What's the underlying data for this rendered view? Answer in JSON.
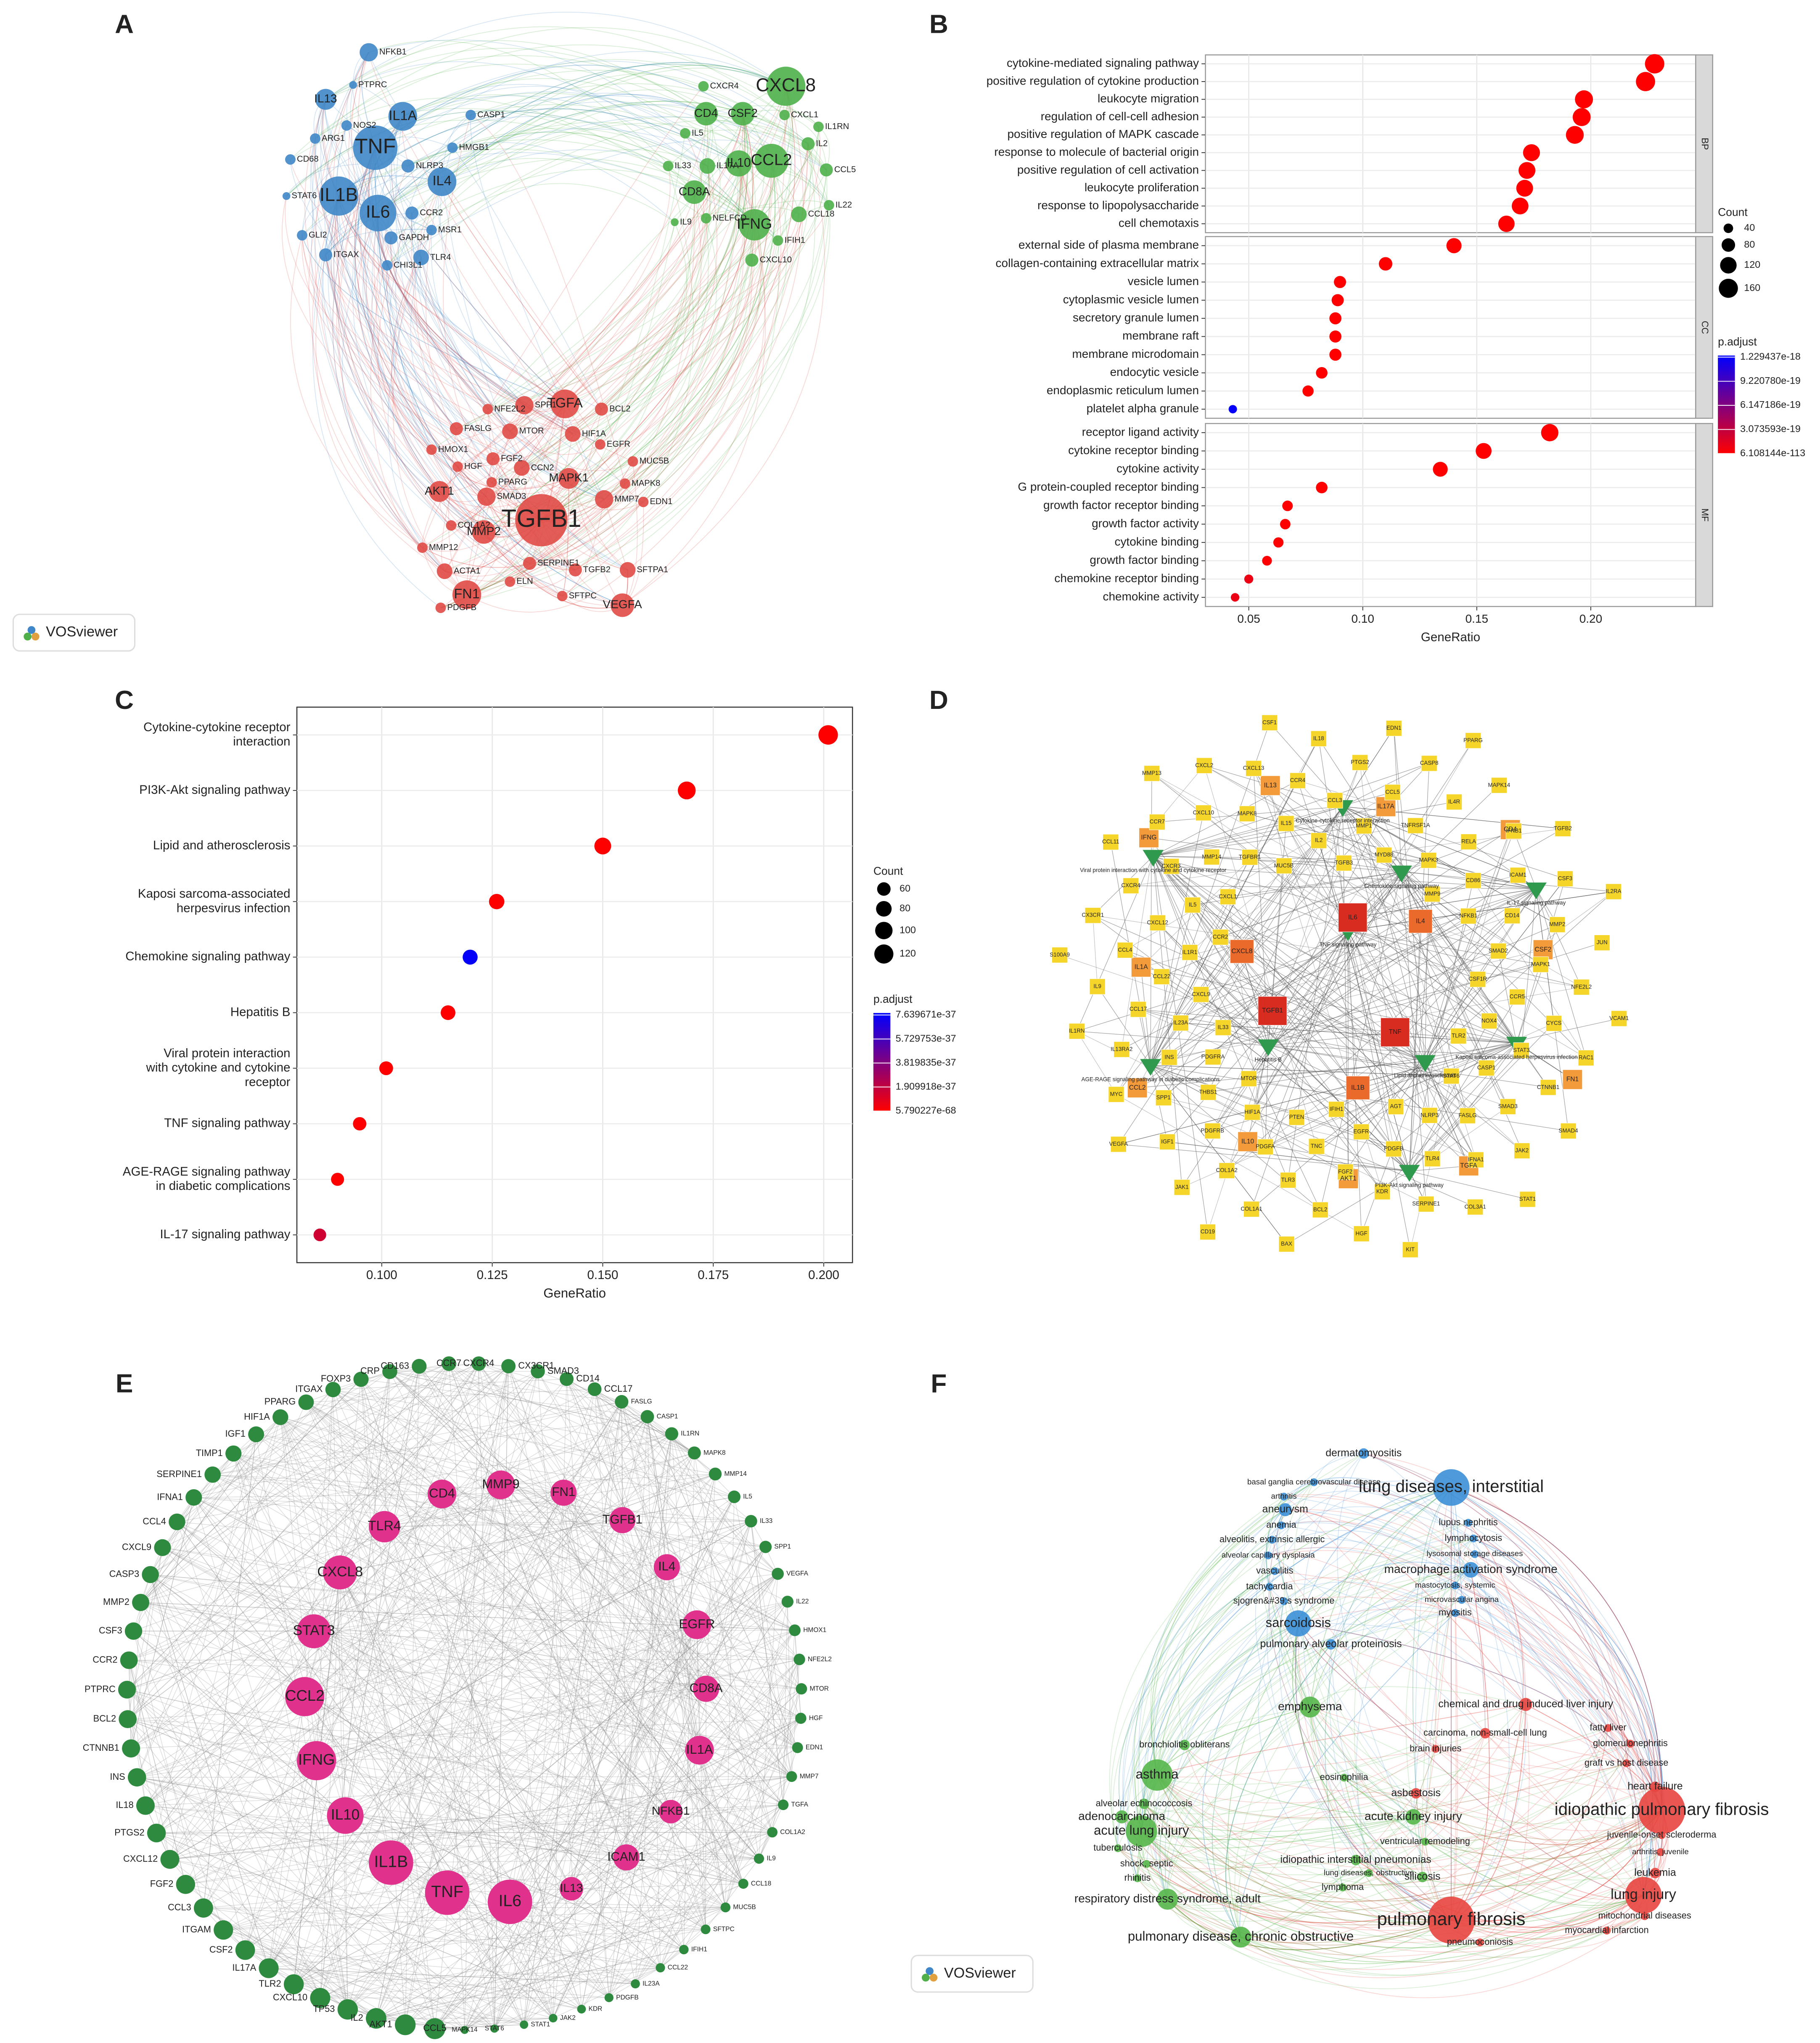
{
  "chart_data": [
    {
      "type": "network",
      "panel": "A",
      "watermark": "VOSviewer",
      "groups": [
        {
          "color": "#3f87c8",
          "shape": "circle",
          "nodes": [
            "TNF",
            "IL1B",
            "IL6",
            "IL1A",
            "IL4",
            "IL13",
            "NFKB1",
            "PTPRC",
            "NOS2",
            "CASP1",
            "HMGB1",
            "ARG1",
            "CD68",
            "NLRP3",
            "CCR2",
            "MSR1",
            "GAPDH",
            "STAT6",
            "GLI2",
            "ITGAX",
            "CHI3L1",
            "TLR4"
          ]
        },
        {
          "color": "#4fb04a",
          "shape": "circle",
          "nodes": [
            "CXCL8",
            "CD4",
            "CSF2",
            "CXCR4",
            "CXCL1",
            "IL1RN",
            "IL5",
            "CCL2",
            "IL10",
            "IL2",
            "IL33",
            "IL17A",
            "CCL5",
            "CD8A",
            "IFNG",
            "NELFCD",
            "CCL18",
            "IL22",
            "IFIH1",
            "CXCL10",
            "IL9"
          ]
        },
        {
          "color": "#e04a45",
          "shape": "circle",
          "nodes": [
            "TGFB1",
            "FN1",
            "VEGFA",
            "TGFA",
            "SPP1",
            "NFE2L2",
            "BCL2",
            "FASLG",
            "MTOR",
            "HIF1A",
            "HMOX1",
            "EGFR",
            "HGF",
            "FGF2",
            "CCN2",
            "MUC5B",
            "PPARG",
            "MAPK1",
            "MAPK8",
            "AKT1",
            "SMAD3",
            "MMP7",
            "EDN1",
            "COL1A2",
            "MMP2",
            "MMP12",
            "SERPINE1",
            "TGFB2",
            "SFTPA1",
            "ACTA1",
            "ELN",
            "SFTPC",
            "PDGFB"
          ]
        }
      ]
    },
    {
      "type": "dot",
      "panel": "B",
      "xlabel": "GeneRatio",
      "xlim": [
        0.031,
        0.246
      ],
      "xticks": [
        0.05,
        {
          "value": 0.1,
          "label": "0.10"
        },
        0.15,
        {
          "value": 0.2,
          "label": "0.20"
        }
      ],
      "grid": true,
      "size_title": "Count",
      "size_ticks": [
        40,
        80,
        120,
        160
      ],
      "color_title": "p.adjust",
      "colors": [
        "#ff0000",
        "#0000ff"
      ],
      "clim": [
        6.108144e-113,
        1.25e-18
      ],
      "color_ticks": [
        {
          "value": 1.229437e-18,
          "label": "1.229437e-18"
        },
        {
          "value": 9.22078e-19,
          "label": "9.220780e-19"
        },
        {
          "value": 6.147186e-19,
          "label": "6.147186e-19"
        },
        {
          "value": 3.073593e-19,
          "label": "3.073593e-19"
        },
        {
          "value": 6.108144e-113,
          "label": "6.108144e-113"
        }
      ],
      "facets": [
        {
          "name": "BP",
          "categories": [
            "cytokine-mediated signaling pathway",
            "positive regulation of cytokine production",
            "leukocyte migration",
            "regulation of cell-cell adhesion",
            "positive regulation of MAPK cascade",
            "response to molecule of bacterial origin",
            "positive regulation of cell activation",
            "leukocyte proliferation",
            "response to lipopolysaccharide",
            "cell chemotaxis"
          ],
          "values": [
            0.228,
            0.224,
            0.197,
            0.196,
            0.193,
            0.174,
            0.172,
            0.171,
            0.169,
            0.163
          ],
          "counts": [
            165,
            162,
            143,
            142,
            140,
            126,
            125,
            124,
            123,
            118
          ],
          "p_adjust": [
            6.108144e-113,
            1e-110,
            1e-95,
            1e-90,
            1e-88,
            1e-75,
            1e-72,
            1e-70,
            1e-70,
            1e-68
          ]
        },
        {
          "name": "CC",
          "categories": [
            "external side of plasma membrane",
            "collagen-containing extracellular matrix",
            "vesicle lumen",
            "cytoplasmic vesicle lumen",
            "secretory granule lumen",
            "membrane raft",
            "membrane microdomain",
            "endocytic vesicle",
            "endoplasmic reticulum lumen",
            "platelet alpha granule"
          ],
          "values": [
            0.14,
            0.11,
            0.09,
            0.089,
            0.088,
            0.088,
            0.088,
            0.082,
            0.076,
            0.043
          ],
          "counts": [
            101,
            80,
            65,
            65,
            64,
            64,
            64,
            59,
            55,
            31
          ],
          "p_adjust": [
            1e-55,
            1e-40,
            1e-30,
            1e-30,
            1e-29,
            1e-28,
            1e-28,
            1e-25,
            1e-22,
            1.229437e-18
          ]
        },
        {
          "name": "MF",
          "categories": [
            "receptor ligand activity",
            "cytokine receptor binding",
            "cytokine activity",
            "G protein-coupled receptor binding",
            "growth factor receptor binding",
            "growth factor activity",
            "cytokine binding",
            "growth factor binding",
            "chemokine receptor binding",
            "chemokine activity"
          ],
          "values": [
            0.182,
            0.153,
            0.134,
            0.082,
            0.067,
            0.066,
            0.063,
            0.058,
            0.05,
            0.044
          ],
          "counts": [
            132,
            111,
            97,
            59,
            49,
            48,
            46,
            42,
            36,
            32
          ],
          "p_adjust": [
            1e-80,
            1e-70,
            1e-60,
            1e-30,
            1e-24,
            1e-23,
            1e-22,
            1e-20,
            1e-19,
            1e-19
          ]
        }
      ]
    },
    {
      "type": "dot",
      "panel": "C",
      "xlabel": "GeneRatio",
      "xlim": [
        0.0808,
        0.2065
      ],
      "xticks": [
        {
          "value": 0.1,
          "label": "0.100"
        },
        0.125,
        {
          "value": 0.15,
          "label": "0.150"
        },
        0.175,
        {
          "value": 0.2,
          "label": "0.200"
        }
      ],
      "grid": true,
      "size_title": "Count",
      "size_ticks": [
        60,
        80,
        100,
        120
      ],
      "color_title": "p.adjust",
      "colors": [
        "#ff0000",
        "#0000ff"
      ],
      "clim": [
        5.790227e-68,
        7.8e-37
      ],
      "color_ticks": [
        {
          "value": 7.639671e-37,
          "label": "7.639671e-37"
        },
        {
          "value": 5.729753e-37,
          "label": "5.729753e-37"
        },
        {
          "value": 3.819835e-37,
          "label": "3.819835e-37"
        },
        {
          "value": 1.909918e-37,
          "label": "1.909918e-37"
        },
        {
          "value": 5.790227e-68,
          "label": "5.790227e-68"
        }
      ],
      "categories": [
        "Cytokine-cytokine receptor\ninteraction",
        "PI3K-Akt signaling pathway",
        "Lipid and atherosclerosis",
        "Kaposi sarcoma-associated\nherpesvirus infection",
        "Chemokine signaling pathway",
        "Hepatitis B",
        "Viral protein interaction\nwith cytokine and cytokine\nreceptor",
        "TNF signaling pathway",
        "AGE-RAGE signaling pathway\nin diabetic complications",
        "IL-17 signaling pathway"
      ],
      "values": [
        0.201,
        0.169,
        0.15,
        0.126,
        0.12,
        0.115,
        0.101,
        0.095,
        0.09,
        0.086
      ],
      "counts": [
        125,
        105,
        93,
        78,
        74,
        71,
        63,
        59,
        56,
        53
      ],
      "p_adjust": [
        5.790227e-68,
        1e-60,
        1e-55,
        1e-45,
        7.639671e-37,
        1e-42,
        1e-40,
        1e-42,
        1e-40,
        1.5e-37
      ]
    },
    {
      "type": "network",
      "panel": "D",
      "groups": [
        {
          "color": "#2f9a4e",
          "shape": "triangle",
          "nodes": [
            "Cytokine-cytokine receptor interaction",
            "Viral protein interaction with cytokine and cytokine receptor",
            "Chemokine signaling pathway",
            "IL-17 signaling pathway",
            "TNF signaling pathway",
            "Hepatitis B",
            "AGE-RAGE signaling pathway in diabetic complications",
            "Lipid and atherosclerosis",
            "Kaposi sarcoma-associated herpesvirus infection",
            "PI3K-Akt signaling pathway"
          ]
        },
        {
          "color": "#d82c20",
          "shape": "square",
          "nodes": [
            "TNF",
            "TGFB1",
            "IL6"
          ]
        },
        {
          "color": "#ea6a2c",
          "shape": "square",
          "nodes": [
            "IL1B",
            "CXCL8",
            "IL4"
          ]
        },
        {
          "color": "#f39b3a",
          "shape": "square",
          "nodes": [
            "IL10",
            "CCL2",
            "IL1A",
            "IFNG",
            "IL13",
            "IL17A",
            "CD4",
            "CSF2",
            "FN1",
            "TGFA",
            "AKT1"
          ]
        },
        {
          "color": "#f6d52a",
          "shape": "square",
          "nodes": [
            "IL33",
            "IL13RA2",
            "IL23A",
            "IL1RN",
            "CCL17",
            "CXCL9",
            "IL9",
            "CCL22",
            "S100A9",
            "CCL4",
            "IL1R1",
            "CX3CR1",
            "CXCL12",
            "CCR2",
            "CXCR4",
            "IL5",
            "CCL11",
            "CXCR3",
            "CXCL1",
            "CCR7",
            "MMP14",
            "MMP13",
            "CXCL10",
            "TGFBR1",
            "CXCL2",
            "MAPK8",
            "MUC5B",
            "CXCL13",
            "IL15",
            "CSF1",
            "CCR4",
            "IL2",
            "IL18",
            "CCL3",
            "TGFB3",
            "PTGS2",
            "MMP1",
            "EDN1",
            "CCL5",
            "MYD88",
            "CASP8",
            "TNFRSF1A",
            "PPARG",
            "IL4R",
            "MAPK3",
            "MAPK14",
            "RELA",
            "MMP9",
            "IFNB1",
            "CD86",
            "TGFB2",
            "ICAM1",
            "NFKB1",
            "CSF3",
            "CD14",
            "IL2RA",
            "MMP2",
            "SMAD2",
            "JUN",
            "MAPK1",
            "CSF1R",
            "NFE2L2",
            "CCR5",
            "VCAM1",
            "CYCS",
            "NOX4",
            "RAC1",
            "STAT3",
            "TLR2",
            "CTNNB1",
            "CASP1",
            "SMAD4",
            "SMAD3",
            "STAT6",
            "JAK2",
            "FASLG",
            "STAT1",
            "IFNA1",
            "NLRP3",
            "COL3A1",
            "TLR4",
            "AGT",
            "SERPINE1",
            "PDGFB",
            "KIT",
            "KDR",
            "EGFR",
            "HGF",
            "FGF2",
            "IFIH1",
            "BCL2",
            "TNC",
            "BAX",
            "TLR3",
            "PTEN",
            "COL1A1",
            "PDGFA",
            "CD19",
            "COL1A2",
            "HIF1A",
            "JAK1",
            "PDGFRB",
            "MTOR",
            "IGF1",
            "THBS1",
            "VEGFA",
            "SPP1",
            "PDGFRA",
            "MYC",
            "INS"
          ]
        }
      ]
    },
    {
      "type": "network",
      "panel": "E",
      "groups": [
        {
          "color": "#e0318c",
          "shape": "circle",
          "nodes": [
            "CD4",
            "MMP9",
            "FN1",
            "TGFB1",
            "IL4",
            "EGFR",
            "CD8A",
            "IL1A",
            "NFKB1",
            "ICAM1",
            "IL13",
            "IL6",
            "TNF",
            "IL1B",
            "IL10",
            "IFNG",
            "CCL2",
            "STAT3",
            "CXCL8",
            "TLR4"
          ]
        },
        {
          "color": "#2e8a3f",
          "shape": "circle",
          "nodes": [
            "CCL5",
            "AKT1",
            "IL2",
            "TP53",
            "CXCL10",
            "TLR2",
            "IL17A",
            "CSF2",
            "ITGAM",
            "CCL3",
            "FGF2",
            "CXCL12",
            "PTGS2",
            "IL18",
            "INS",
            "CTNNB1",
            "BCL2",
            "PTPRC",
            "CCR2",
            "CSF3",
            "MMP2",
            "CASP3",
            "CXCL9",
            "CCL4",
            "IFNA1",
            "SERPINE1",
            "TIMP1",
            "IGF1",
            "HIF1A",
            "PPARG",
            "ITGAX",
            "FOXP3",
            "CRP",
            "CD163",
            "CCR7",
            "CXCR4",
            "CX3CR1",
            "SMAD3",
            "CD14",
            "CCL17",
            "FASLG",
            "CASP1",
            "IL1RN",
            "MAPK8",
            "MMP14",
            "IL5",
            "IL33",
            "SPP1",
            "VEGFA",
            "IL22",
            "HMOX1",
            "NFE2L2",
            "MTOR",
            "HGF",
            "EDN1",
            "MMP7",
            "TGFA",
            "COL1A2",
            "IL9",
            "CCL18",
            "MUC5B",
            "SFTPC",
            "IFIH1",
            "CCL22",
            "IL23A",
            "PDGFB",
            "KDR",
            "JAK2",
            "STAT1",
            "STAT6",
            "MAPK14"
          ]
        }
      ]
    },
    {
      "type": "network",
      "panel": "F",
      "watermark": "VOSviewer",
      "groups": [
        {
          "color": "#3b8fd6",
          "shape": "circle",
          "nodes": [
            "lung diseases, interstitial",
            "dermatomyositis",
            "sarcoidosis",
            "macrophage activation syndrome",
            "pulmonary alveolar proteinosis",
            "lupus nephritis",
            "lymphocytosis",
            "lysosomal storage diseases",
            "mastocytosis, systemic",
            "microvascular angina",
            "myositis",
            "aneurysm",
            "anemia",
            "alveolitis, extrinsic allergic",
            "alveolar capillary dysplasia",
            "vasculitis",
            "tachycardia",
            "sjogren&#39;s syndrome",
            "basal ganglia cerebrovascular disease",
            "arthritis"
          ]
        },
        {
          "color": "#55b64a",
          "shape": "circle",
          "nodes": [
            "asthma",
            "emphysema",
            "bronchiolitis obliterans",
            "alveolar echinococcosis",
            "adenocarcinoma",
            "acute lung injury",
            "tuberculosis",
            "shock, septic",
            "rhinitis",
            "respiratory distress syndrome, adult",
            "pulmonary disease, chronic obstructive",
            "eosinophilia",
            "acute kidney injury",
            "idiopathic interstitial pneumonias",
            "ventricular remodeling",
            "silicosis",
            "lymphoma",
            "lung diseases, obstructive"
          ]
        },
        {
          "color": "#e8453f",
          "shape": "circle",
          "nodes": [
            "pulmonary fibrosis",
            "idiopathic pulmonary fibrosis",
            "lung injury",
            "chemical and drug induced liver injury",
            "carcinoma, non-small-cell lung",
            "brain injuries",
            "asbestosis",
            "fatty liver",
            "glomerulonephritis",
            "graft vs host disease",
            "heart failure",
            "juvenile-onset scleroderma",
            "leukemia",
            "mitochondrial diseases",
            "myocardial infarction",
            "pneumoconiosis",
            "arthritis, juvenile"
          ]
        }
      ]
    }
  ]
}
